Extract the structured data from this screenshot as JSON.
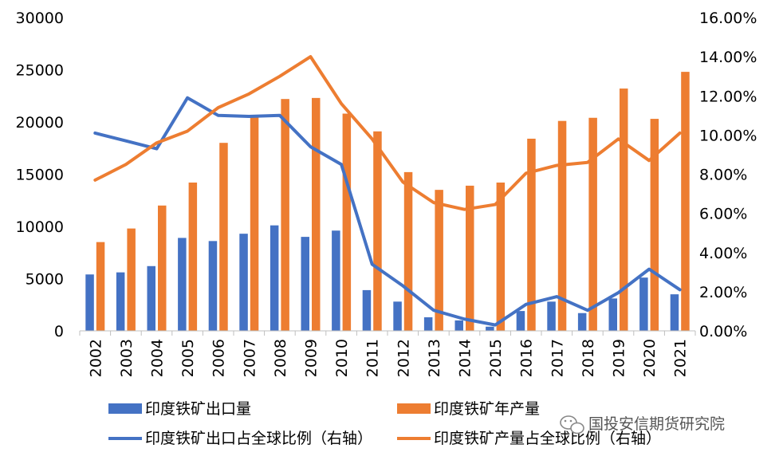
{
  "chart_data": {
    "type": "bar",
    "categories": [
      "2002",
      "2003",
      "2004",
      "2005",
      "2006",
      "2007",
      "2008",
      "2009",
      "2010",
      "2011",
      "2012",
      "2013",
      "2014",
      "2015",
      "2016",
      "2017",
      "2018",
      "2019",
      "2020",
      "2021"
    ],
    "ylim": [
      0,
      30000
    ],
    "y_ticks": [
      "0",
      "5000",
      "10000",
      "15000",
      "20000",
      "25000",
      "30000"
    ],
    "y2lim": [
      0,
      0.16
    ],
    "y2_ticks": [
      "0.00%",
      "2.00%",
      "4.00%",
      "6.00%",
      "8.00%",
      "10.00%",
      "12.00%",
      "14.00%",
      "16.00%"
    ],
    "grid": false,
    "legend_position": "bottom",
    "series": [
      {
        "name": "印度铁矿出口量",
        "kind": "bar",
        "axis": "left",
        "color": "#4472C4",
        "values": [
          5400,
          5600,
          6200,
          8900,
          8600,
          9300,
          10100,
          9000,
          9600,
          3900,
          2800,
          1300,
          1000,
          400,
          1900,
          2800,
          1700,
          3100,
          5100,
          3500
        ]
      },
      {
        "name": "印度铁矿年产量",
        "kind": "bar",
        "axis": "left",
        "color": "#ED7D31",
        "values": [
          8500,
          9800,
          12000,
          14200,
          18000,
          20500,
          22200,
          22300,
          20800,
          19100,
          15200,
          13500,
          13900,
          14200,
          18400,
          20100,
          20400,
          23200,
          20300,
          24800
        ]
      },
      {
        "name": "印度铁矿出口占全球比例（右轴）",
        "kind": "line",
        "axis": "right",
        "color": "#4472C4",
        "values": [
          0.101,
          0.097,
          0.093,
          0.119,
          0.11,
          0.1095,
          0.11,
          0.094,
          0.085,
          0.034,
          0.023,
          0.0105,
          0.006,
          0.003,
          0.0135,
          0.0175,
          0.0105,
          0.0195,
          0.0315,
          0.021
        ]
      },
      {
        "name": "印度铁矿产量占全球比例（右轴）",
        "kind": "line",
        "axis": "right",
        "color": "#ED7D31",
        "values": [
          0.077,
          0.085,
          0.096,
          0.102,
          0.114,
          0.121,
          0.13,
          0.14,
          0.116,
          0.098,
          0.076,
          0.0655,
          0.062,
          0.0645,
          0.0805,
          0.0845,
          0.086,
          0.098,
          0.087,
          0.101
        ]
      }
    ]
  },
  "watermark": {
    "icon": "wechat-icon",
    "text": "国投安信期货研究院"
  }
}
